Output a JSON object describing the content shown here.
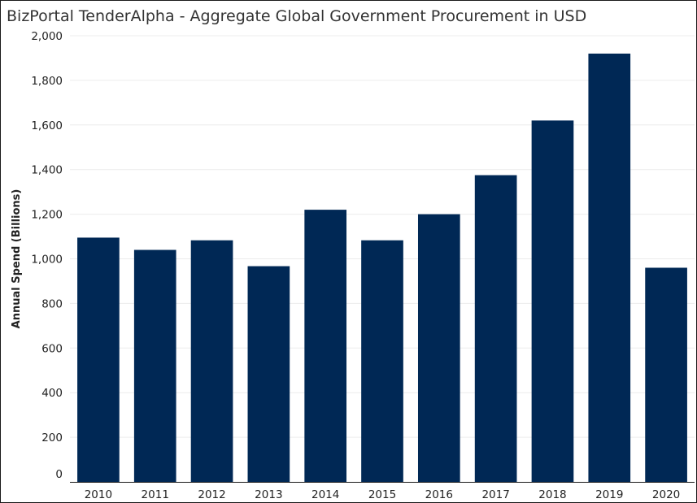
{
  "chart_data": {
    "type": "bar",
    "title": "BizPortal TenderAlpha - Aggregate Global Government Procurement in USD",
    "xlabel": "",
    "ylabel": "Annual Spend (Billions)",
    "categories": [
      "2010",
      "2011",
      "2012",
      "2013",
      "2014",
      "2015",
      "2016",
      "2017",
      "2018",
      "2019",
      "2020"
    ],
    "values": [
      1095,
      1040,
      1083,
      967,
      1220,
      1083,
      1200,
      1375,
      1620,
      1920,
      960
    ],
    "ylim": [
      0,
      2000
    ],
    "yticks": [
      0,
      200,
      400,
      600,
      800,
      1000,
      1200,
      1400,
      1600,
      1800,
      2000
    ],
    "ytick_labels": [
      "0",
      "200",
      "400",
      "600",
      "800",
      "1,000",
      "1,200",
      "1,400",
      "1,600",
      "1,800",
      "2,000"
    ],
    "grid": true,
    "legend": "none",
    "bar_color": "#002855"
  }
}
